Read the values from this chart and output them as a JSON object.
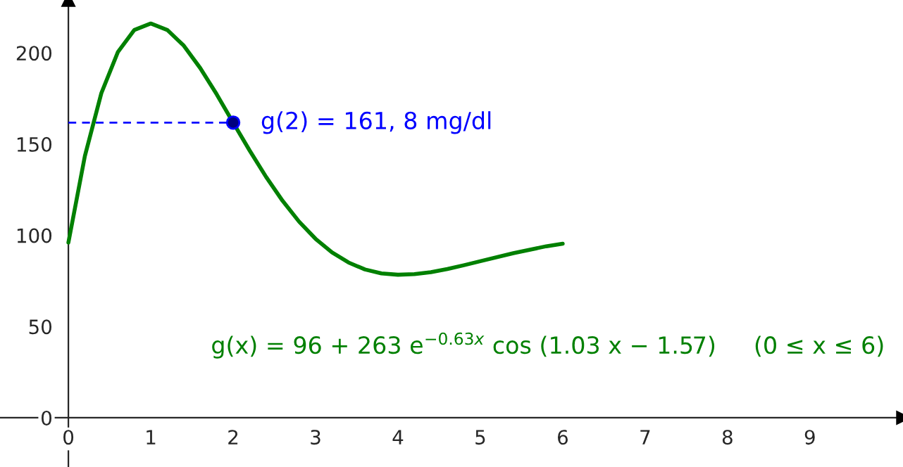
{
  "chart_data": {
    "type": "line",
    "xlim": [
      -0.83,
      10.13
    ],
    "ylim": [
      -27,
      229
    ],
    "xticks": [
      0,
      1,
      2,
      3,
      4,
      5,
      6,
      7,
      8,
      9
    ],
    "yticks": [
      0,
      50,
      100,
      150,
      200
    ],
    "grid": false,
    "legend": false,
    "series": [
      {
        "color": "#008000",
        "line_style": "solid",
        "marker": "none",
        "x": [
          0,
          0.2,
          0.4,
          0.6,
          0.8,
          1.0,
          1.2,
          1.4,
          1.6,
          1.8,
          2.0,
          2.2,
          2.4,
          2.6,
          2.8,
          3.0,
          3.2,
          3.4,
          3.6,
          3.8,
          4.0,
          4.2,
          4.4,
          4.6,
          4.8,
          5.0,
          5.4,
          5.8,
          6.0
        ],
        "values": [
          96,
          143.4,
          177.9,
          200.4,
          212.6,
          216.1,
          212.6,
          204.0,
          191.7,
          177.3,
          161.8,
          146.5,
          132.0,
          118.9,
          107.5,
          98.1,
          90.6,
          85.1,
          81.3,
          79.1,
          78.4,
          78.7,
          79.8,
          81.5,
          83.6,
          85.8,
          90.2,
          94.0,
          95.4
        ]
      },
      {
        "color": "#0000ff",
        "line_style": "dashed",
        "marker": "none",
        "x": [
          0,
          2
        ],
        "values": [
          161.8,
          161.8
        ]
      },
      {
        "type": "scatter",
        "color": "#0000ff",
        "marker": "circle",
        "x": [
          2
        ],
        "values": [
          161.8
        ]
      }
    ],
    "annotations": [
      {
        "text": "g(2) = 161, 8 mg/dl",
        "x": 2,
        "y": 161.8
      },
      "g(x) = 96 + 263 e$^{−0.63x}$ cos (1.03 x − 1.57)     (0 ≤ x ≤ 6)"
    ]
  }
}
